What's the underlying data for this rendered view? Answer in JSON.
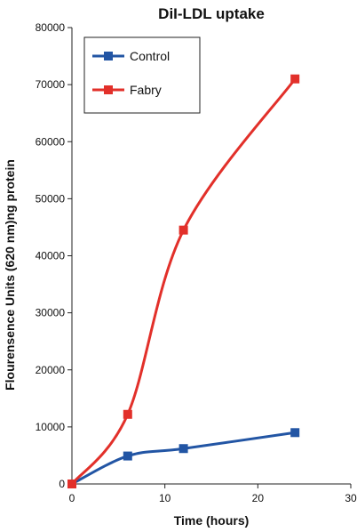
{
  "chart_data": {
    "type": "line",
    "title": "DiI-LDL uptake",
    "xlabel": "Time (hours)",
    "ylabel": "Flourensence Units (620 nm)ng protein",
    "xlim": [
      0,
      30
    ],
    "ylim": [
      0,
      80000
    ],
    "x_ticks": [
      0,
      10,
      20,
      30
    ],
    "y_ticks": [
      0,
      10000,
      20000,
      30000,
      40000,
      50000,
      60000,
      70000,
      80000
    ],
    "grid": false,
    "legend_position": "top-left",
    "series": [
      {
        "name": "Control",
        "color": "#2255a4",
        "x": [
          0,
          6,
          12,
          24
        ],
        "y": [
          0,
          4900,
          6200,
          9000
        ]
      },
      {
        "name": "Fabry",
        "color": "#e2302a",
        "x": [
          0,
          6,
          12,
          24
        ],
        "y": [
          0,
          12200,
          44500,
          71000
        ]
      }
    ]
  }
}
